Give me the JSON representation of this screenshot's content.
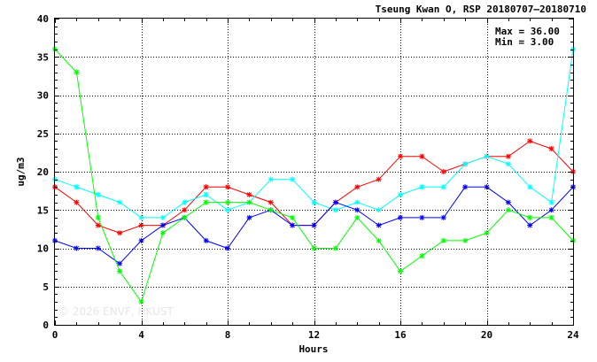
{
  "chart_data": {
    "type": "line",
    "title": "Tseung Kwan O, RSP 20180707–20180710",
    "xlabel": "Hours",
    "ylabel": "ug/m3",
    "xlim": [
      0,
      24
    ],
    "ylim": [
      0,
      40
    ],
    "xticks": [
      0,
      4,
      8,
      12,
      16,
      20,
      24
    ],
    "yticks": [
      0,
      5,
      10,
      15,
      20,
      25,
      30,
      35,
      40
    ],
    "grid": true,
    "x": [
      0,
      1,
      2,
      3,
      4,
      5,
      6,
      7,
      8,
      9,
      10,
      11,
      12,
      13,
      14,
      15,
      16,
      17,
      18,
      19,
      20,
      21,
      22,
      23,
      24
    ],
    "series": [
      {
        "color": "#ff0000",
        "values": [
          18,
          16,
          13,
          12,
          13,
          13,
          15,
          18,
          18,
          17,
          16,
          13,
          13,
          16,
          18,
          19,
          22,
          22,
          20,
          21,
          22,
          22,
          24,
          23,
          20
        ]
      },
      {
        "color": "#00ffff",
        "values": [
          19,
          18,
          17,
          16,
          14,
          14,
          16,
          17,
          15,
          16,
          19,
          19,
          16,
          15,
          16,
          15,
          17,
          18,
          18,
          21,
          22,
          21,
          18,
          16,
          36
        ]
      },
      {
        "color": "#0000ff",
        "values": [
          11,
          10,
          10,
          8,
          11,
          13,
          14,
          11,
          10,
          14,
          15,
          13,
          13,
          16,
          15,
          13,
          14,
          14,
          14,
          18,
          18,
          16,
          13,
          15,
          18
        ]
      },
      {
        "color": "#00ff00",
        "values": [
          36,
          33,
          14,
          7,
          3,
          12,
          14,
          16,
          16,
          16,
          15,
          14,
          10,
          10,
          14,
          11,
          7,
          9,
          11,
          11,
          12,
          15,
          14,
          14,
          11
        ]
      }
    ],
    "annotations": {
      "max_label": "Max = 36.00",
      "min_label": "Min =  3.00"
    },
    "watermark": "© 2026  ENVF, HKUST"
  }
}
